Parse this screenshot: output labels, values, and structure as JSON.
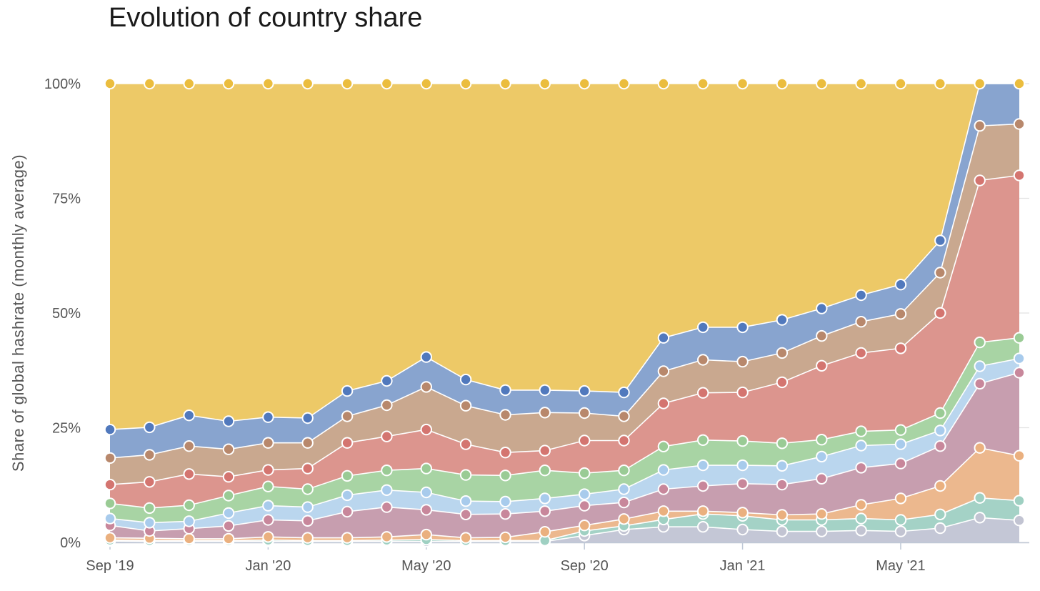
{
  "chart_data": {
    "type": "area",
    "stacking": "percent",
    "title": "Evolution of country share",
    "ylabel": "Share of global hashrate (monthly average)",
    "xlabel": "",
    "x": [
      "2019-09",
      "2019-10",
      "2019-11",
      "2019-12",
      "2020-01",
      "2020-02",
      "2020-03",
      "2020-04",
      "2020-05",
      "2020-06",
      "2020-07",
      "2020-08",
      "2020-09",
      "2020-10",
      "2020-11",
      "2020-12",
      "2021-01",
      "2021-02",
      "2021-03",
      "2021-04",
      "2021-05",
      "2021-06",
      "2021-07",
      "2021-08"
    ],
    "x_tick_labels": [
      {
        "x": "2019-09",
        "label": "Sep '19"
      },
      {
        "x": "2020-01",
        "label": "Jan '20"
      },
      {
        "x": "2020-05",
        "label": "May '20"
      },
      {
        "x": "2020-09",
        "label": "Sep '20"
      },
      {
        "x": "2021-01",
        "label": "Jan '21"
      },
      {
        "x": "2021-05",
        "label": "May '21"
      }
    ],
    "y_tick_labels": [
      {
        "y": 0,
        "label": "0%"
      },
      {
        "y": 25,
        "label": "25%"
      },
      {
        "y": 50,
        "label": "50%"
      },
      {
        "y": 75,
        "label": "75%"
      },
      {
        "y": 100,
        "label": "100%"
      }
    ],
    "ylim": [
      0,
      100
    ],
    "grid": true,
    "legend": "none",
    "cumulative_tops": [
      [
        0.3,
        0.2,
        0.2,
        0.2,
        0.2,
        0.2,
        0.2,
        0.2,
        0.2,
        0.2,
        0.2,
        0.2,
        1.5,
        2.8,
        3.4,
        3.4,
        2.8,
        2.4,
        2.4,
        2.6,
        2.4,
        3.1,
        5.4,
        4.8
      ],
      [
        0.5,
        0.4,
        0.4,
        0.4,
        0.5,
        0.4,
        0.4,
        0.5,
        0.6,
        0.4,
        0.4,
        0.4,
        2.5,
        3.6,
        5.0,
        6.2,
        5.8,
        4.9,
        4.9,
        5.2,
        4.9,
        6.1,
        9.7,
        9.1
      ],
      [
        1.0,
        0.9,
        0.8,
        0.8,
        1.2,
        1.0,
        1.0,
        1.2,
        1.7,
        1.0,
        1.1,
        2.3,
        3.7,
        5.1,
        6.8,
        6.8,
        6.5,
        6.0,
        6.2,
        8.2,
        9.6,
        12.3,
        20.6,
        18.9
      ],
      [
        3.7,
        2.5,
        3.0,
        3.6,
        4.9,
        4.7,
        6.7,
        7.7,
        7.1,
        6.1,
        6.2,
        6.8,
        8.0,
        8.7,
        11.6,
        12.3,
        12.8,
        12.6,
        13.9,
        16.3,
        17.2,
        21.0,
        34.6,
        37.0
      ],
      [
        5.2,
        4.3,
        4.6,
        6.4,
        8.0,
        7.7,
        10.3,
        11.4,
        10.9,
        9.0,
        8.9,
        9.6,
        10.5,
        11.6,
        15.8,
        16.8,
        16.8,
        16.7,
        18.7,
        21.1,
        21.4,
        24.4,
        38.4,
        40.1
      ],
      [
        8.5,
        7.5,
        8.1,
        10.2,
        12.2,
        11.6,
        14.5,
        15.7,
        16.1,
        14.7,
        14.6,
        15.7,
        15.1,
        15.7,
        20.9,
        22.3,
        22.1,
        21.6,
        22.4,
        24.2,
        24.5,
        28.2,
        43.6,
        44.6
      ],
      [
        12.6,
        13.2,
        14.9,
        14.3,
        15.8,
        16.1,
        21.7,
        23.1,
        24.6,
        21.4,
        19.6,
        20.0,
        22.2,
        22.2,
        30.3,
        32.6,
        32.7,
        34.9,
        38.5,
        41.3,
        42.3,
        50.0,
        78.9,
        80.0
      ],
      [
        18.4,
        19.1,
        21.0,
        20.3,
        21.7,
        21.7,
        27.5,
        29.9,
        33.9,
        29.8,
        27.8,
        28.3,
        28.2,
        27.5,
        37.3,
        39.8,
        39.4,
        41.3,
        45.0,
        48.1,
        49.8,
        58.8,
        90.8,
        91.2
      ],
      [
        24.6,
        25.1,
        27.7,
        26.4,
        27.3,
        27.1,
        33.0,
        35.2,
        40.4,
        35.5,
        33.2,
        33.2,
        33.0,
        32.7,
        44.6,
        46.9,
        46.9,
        48.5,
        51.0,
        53.9,
        56.2,
        65.8,
        100,
        100
      ],
      [
        100,
        100,
        100,
        100,
        100,
        100,
        100,
        100,
        100,
        100,
        100,
        100,
        100,
        100,
        100,
        100,
        100,
        100,
        100,
        100,
        100,
        100,
        100,
        100
      ]
    ],
    "series_colors": [
      "#c4c7d6",
      "#a4d2c6",
      "#ecb88e",
      "#c79eaf",
      "#bad6ee",
      "#a8d4a4",
      "#dc958e",
      "#c9a88f",
      "#88a4cf",
      "#edc967"
    ],
    "marker_colors": [
      "#c2c4d2",
      "#9fd0c2",
      "#eab07f",
      "#c8879b",
      "#a8cbec",
      "#9acb95",
      "#d47570",
      "#b8886c",
      "#5179bd",
      "#ebbd3e"
    ]
  }
}
